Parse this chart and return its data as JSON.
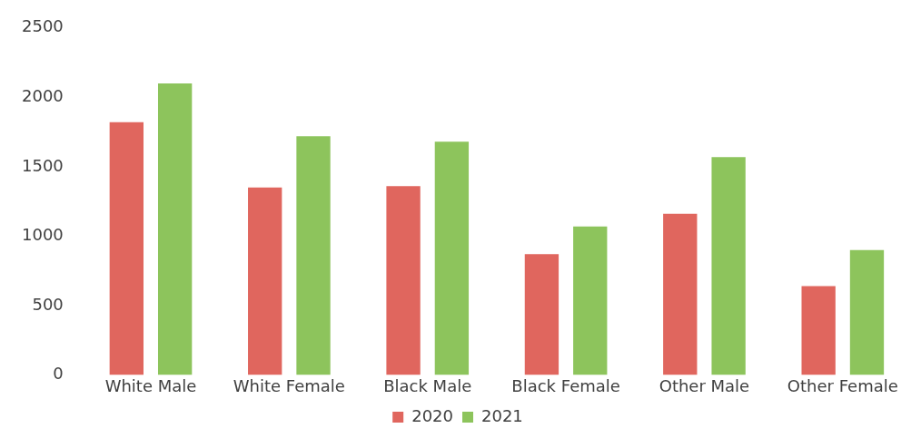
{
  "chart_data": {
    "type": "bar",
    "categories": [
      "White Male",
      "White Female",
      "Black Male",
      "Black Female",
      "Other Male",
      "Other Female"
    ],
    "series": [
      {
        "name": "2020",
        "color": "#e0665e",
        "values": [
          1820,
          1350,
          1360,
          870,
          1160,
          640
        ]
      },
      {
        "name": "2021",
        "color": "#8dc45c",
        "values": [
          2100,
          1720,
          1680,
          1070,
          1570,
          900
        ]
      }
    ],
    "ylim": [
      0,
      2500
    ],
    "yticks": [
      0,
      500,
      1000,
      1500,
      2000,
      2500
    ],
    "grid": false,
    "legend": "bottom"
  }
}
